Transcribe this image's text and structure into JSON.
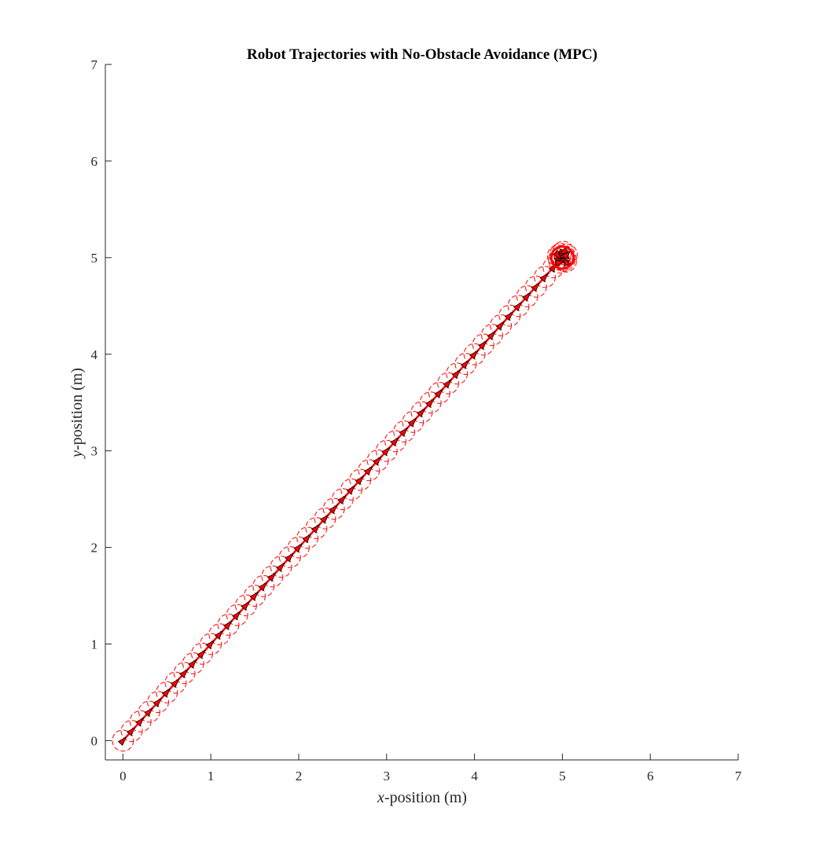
{
  "chart_data": {
    "type": "scatter",
    "title": "Robot Trajectories with No-Obstacle Avoidance (MPC)",
    "xlabel": {
      "var": "x",
      "rest": "-position (m)"
    },
    "ylabel": {
      "var": "y",
      "rest": "-position (m)"
    },
    "xlim": [
      -0.2,
      7
    ],
    "ylim": [
      -0.2,
      7
    ],
    "xticks": [
      "0",
      "1",
      "2",
      "3",
      "4",
      "5",
      "6",
      "7"
    ],
    "yticks": [
      "0",
      "1",
      "2",
      "3",
      "4",
      "5",
      "6",
      "7"
    ],
    "xtick_values": [
      0,
      1,
      2,
      3,
      4,
      5,
      6,
      7
    ],
    "ytick_values": [
      0,
      1,
      2,
      3,
      4,
      5,
      6,
      7
    ],
    "grid": false,
    "series": [
      {
        "kind": "trajectory",
        "color": "#ff0000",
        "marker": "triangle",
        "start": [
          0,
          0
        ],
        "goal": [
          5,
          5
        ],
        "footprint_radius": 0.12,
        "footprint_style": "dashed-circle",
        "poses": [
          [
            0.0,
            0.0
          ],
          [
            0.1,
            0.1
          ],
          [
            0.2,
            0.2
          ],
          [
            0.3,
            0.3
          ],
          [
            0.4,
            0.4
          ],
          [
            0.5,
            0.5
          ],
          [
            0.6,
            0.6
          ],
          [
            0.7,
            0.7
          ],
          [
            0.8,
            0.8
          ],
          [
            0.9,
            0.9
          ],
          [
            1.0,
            1.0
          ],
          [
            1.1,
            1.1
          ],
          [
            1.2,
            1.2
          ],
          [
            1.3,
            1.3
          ],
          [
            1.4,
            1.4
          ],
          [
            1.5,
            1.5
          ],
          [
            1.6,
            1.6
          ],
          [
            1.7,
            1.7
          ],
          [
            1.8,
            1.8
          ],
          [
            1.9,
            1.9
          ],
          [
            2.0,
            2.0
          ],
          [
            2.1,
            2.1
          ],
          [
            2.2,
            2.2
          ],
          [
            2.3,
            2.3
          ],
          [
            2.4,
            2.4
          ],
          [
            2.5,
            2.5
          ],
          [
            2.6,
            2.6
          ],
          [
            2.7,
            2.7
          ],
          [
            2.8,
            2.8
          ],
          [
            2.9,
            2.9
          ],
          [
            3.0,
            3.0
          ],
          [
            3.1,
            3.1
          ],
          [
            3.2,
            3.2
          ],
          [
            3.3,
            3.3
          ],
          [
            3.4,
            3.4
          ],
          [
            3.5,
            3.5
          ],
          [
            3.6,
            3.6
          ],
          [
            3.7,
            3.7
          ],
          [
            3.8,
            3.8
          ],
          [
            3.9,
            3.9
          ],
          [
            4.0,
            4.0
          ],
          [
            4.1,
            4.1
          ],
          [
            4.2,
            4.2
          ],
          [
            4.3,
            4.3
          ],
          [
            4.4,
            4.4
          ],
          [
            4.5,
            4.5
          ],
          [
            4.6,
            4.6
          ],
          [
            4.7,
            4.7
          ],
          [
            4.8,
            4.8
          ],
          [
            4.9,
            4.9
          ],
          [
            4.96,
            4.98
          ],
          [
            5.0,
            5.0
          ],
          [
            5.03,
            5.01
          ],
          [
            4.98,
            5.04
          ],
          [
            5.02,
            4.97
          ],
          [
            5.05,
            5.03
          ],
          [
            4.95,
            5.02
          ],
          [
            5.01,
            5.06
          ],
          [
            5.04,
            4.96
          ],
          [
            4.97,
            4.95
          ]
        ]
      }
    ]
  }
}
